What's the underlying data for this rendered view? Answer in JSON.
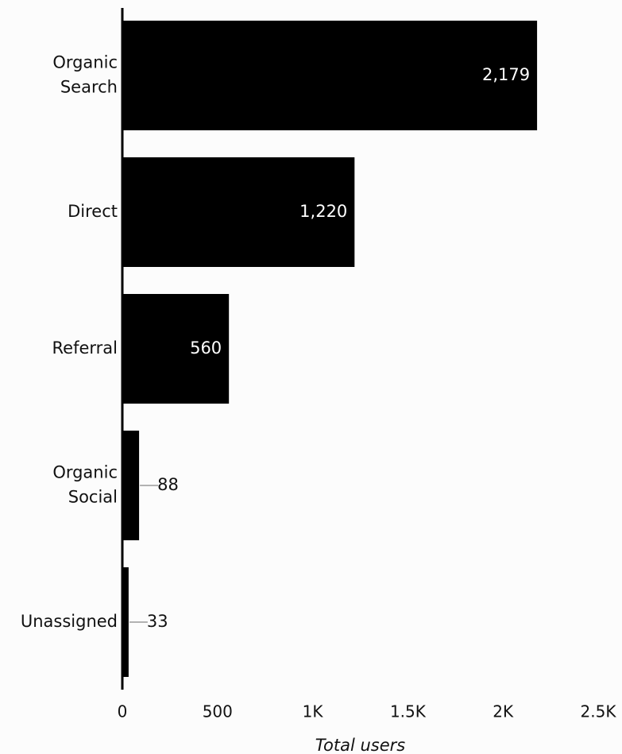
{
  "chart_data": {
    "type": "bar",
    "orientation": "horizontal",
    "categories": [
      "Organic Search",
      "Direct",
      "Referral",
      "Organic Social",
      "Unassigned"
    ],
    "category_lines": [
      [
        "Organic",
        "Search"
      ],
      [
        "Direct"
      ],
      [
        "Referral"
      ],
      [
        "Organic",
        "Social"
      ],
      [
        "Unassigned"
      ]
    ],
    "values": [
      2179,
      1220,
      560,
      88,
      33
    ],
    "value_labels": [
      "2,179",
      "1,220",
      "560",
      "88",
      "33"
    ],
    "xlabel": "Total users",
    "xlim": [
      0,
      2500
    ],
    "x_ticks": [
      0,
      500,
      1000,
      1500,
      2000,
      2500
    ],
    "x_tick_labels": [
      "0",
      "500",
      "1K",
      "1.5K",
      "2K",
      "2.5K"
    ],
    "grid": false,
    "bar_color": "#000000",
    "inside_label_color": "#ffffff",
    "outside_label_color": "#111111",
    "leader_line_color": "#9a9a9a"
  }
}
